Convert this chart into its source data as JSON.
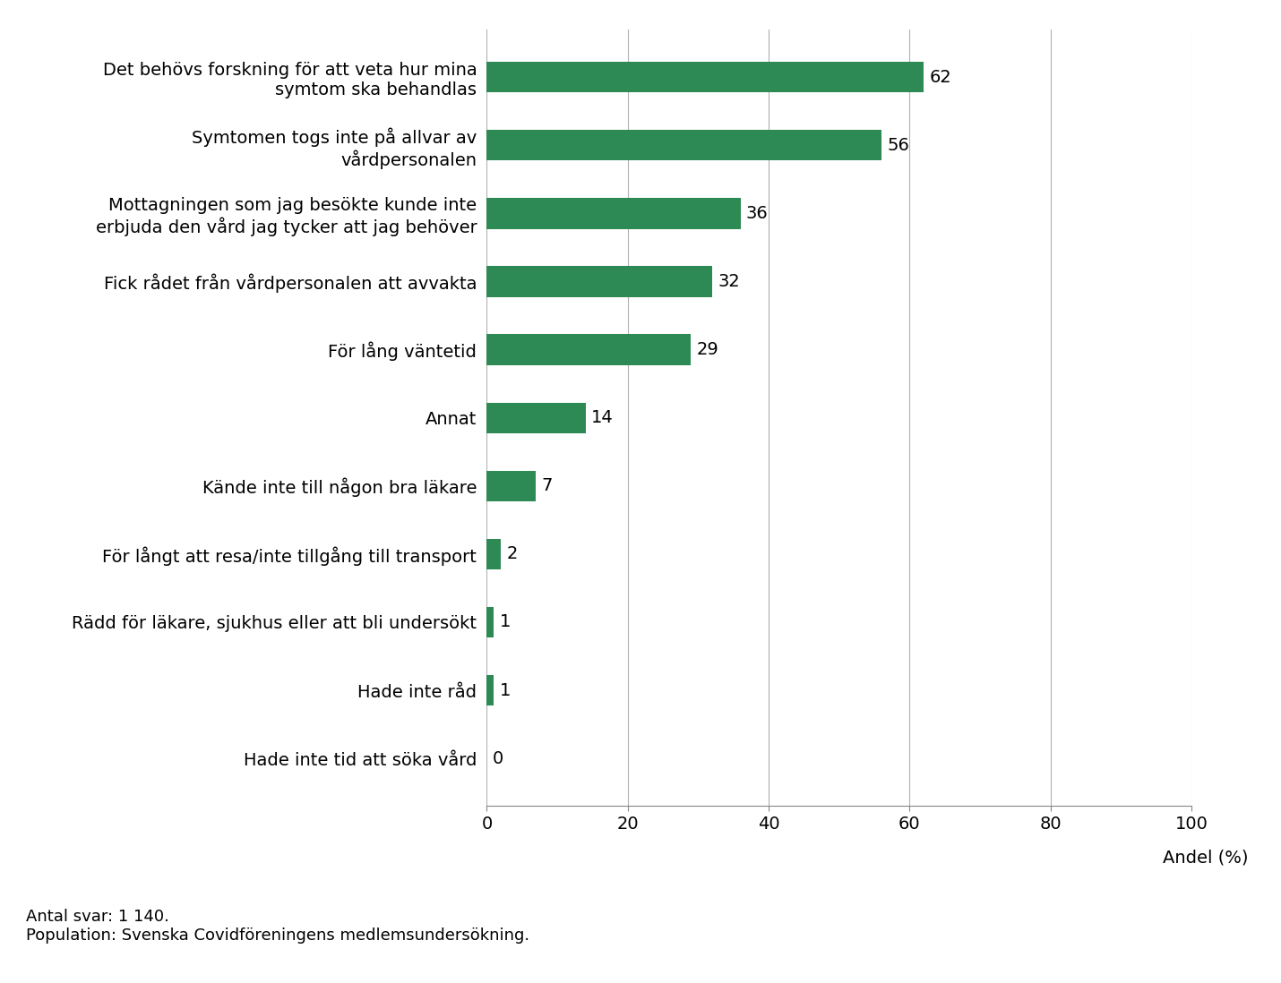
{
  "categories": [
    "Hade inte tid att söka vård",
    "Hade inte råd",
    "Rädd för läkare, sjukhus eller att bli undersökt",
    "För långt att resa/inte tillgång till transport",
    "Kände inte till någon bra läkare",
    "Annat",
    "För lång väntetid",
    "Fick rådet från vårdpersonalen att avvakta",
    "Mottagningen som jag besökte kunde inte\nerbjuda den vård jag tycker att jag behöver",
    "Symtomen togs inte på allvar av\nvårdpersonalen",
    "Det behövs forskning för att veta hur mina\nsymtom ska behandlas"
  ],
  "values": [
    0,
    1,
    1,
    2,
    7,
    14,
    29,
    32,
    36,
    56,
    62
  ],
  "bar_color": "#2d8a55",
  "xlabel": "Andel (%)",
  "xlim": [
    0,
    100
  ],
  "xticks": [
    0,
    20,
    40,
    60,
    80,
    100
  ],
  "footnote_line1": "Antal svar: 1 140.",
  "footnote_line2": "Population: Svenska Covidföreningens medlemsundersökning.",
  "background_color": "#ffffff",
  "label_fontsize": 14,
  "tick_fontsize": 14,
  "value_fontsize": 14,
  "footnote_fontsize": 13
}
